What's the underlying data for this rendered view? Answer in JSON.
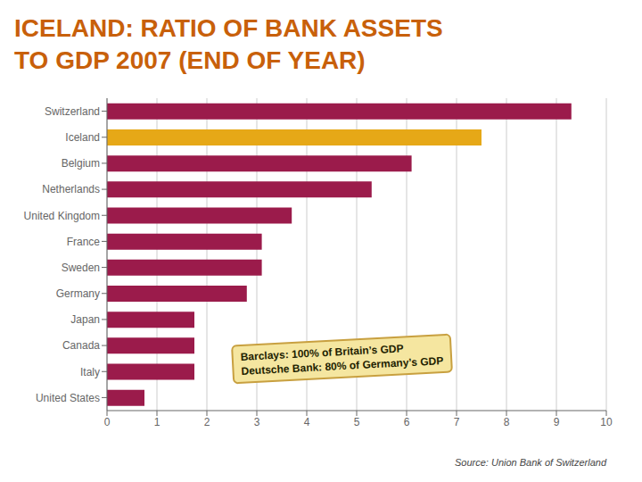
{
  "chart_data": {
    "type": "bar",
    "orientation": "horizontal",
    "title": "ICELAND: RATIO OF BANK ASSETS\nTO GDP 2007 (END OF YEAR)",
    "categories": [
      "Switzerland",
      "Iceland",
      "Belgium",
      "Netherlands",
      "United Kingdom",
      "France",
      "Sweden",
      "Germany",
      "Japan",
      "Canada",
      "Italy",
      "United States"
    ],
    "values": [
      9.3,
      7.5,
      6.1,
      5.3,
      3.7,
      3.1,
      3.1,
      2.8,
      1.75,
      1.75,
      1.75,
      0.75
    ],
    "colors": [
      "#9b1b4b",
      "#e6a817",
      "#9b1b4b",
      "#9b1b4b",
      "#9b1b4b",
      "#9b1b4b",
      "#9b1b4b",
      "#9b1b4b",
      "#9b1b4b",
      "#9b1b4b",
      "#9b1b4b",
      "#9b1b4b"
    ],
    "xlim": [
      0,
      10
    ],
    "xticks": [
      0,
      1,
      2,
      3,
      4,
      5,
      6,
      7,
      8,
      9,
      10
    ],
    "grid": true,
    "annotations": [
      "Barclays: 100% of Britain’s GDP\nDeutsche Bank: 80% of Germany’s GDP",
      "Source: Union Bank of Switzerland"
    ]
  }
}
